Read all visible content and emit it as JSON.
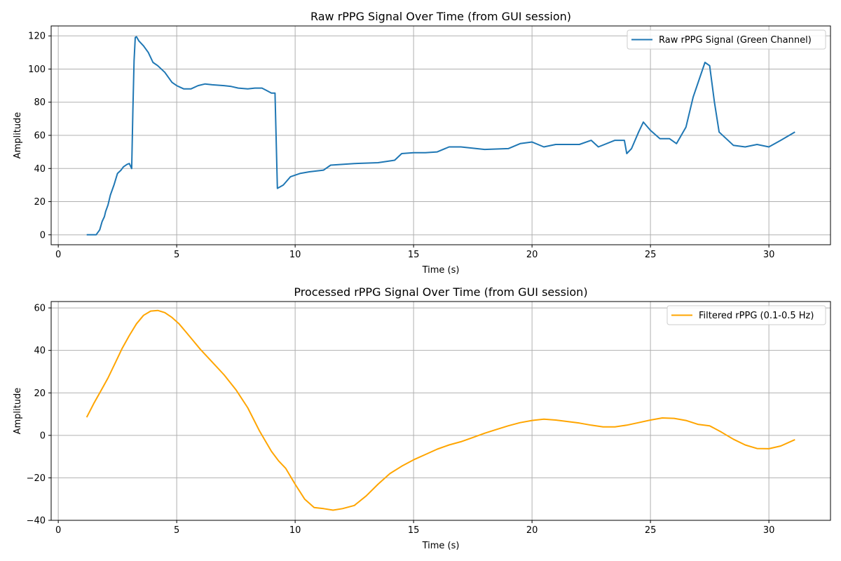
{
  "chart_data": [
    {
      "type": "line",
      "title": "Raw rPPG Signal Over Time (from GUI session)",
      "xlabel": "Time (s)",
      "ylabel": "Amplitude",
      "xlim": [
        -0.3,
        32.6
      ],
      "ylim": [
        -6,
        126
      ],
      "xticks": [
        0,
        5,
        10,
        15,
        20,
        25,
        30
      ],
      "yticks": [
        0,
        20,
        40,
        60,
        80,
        100,
        120
      ],
      "grid": true,
      "legend_position": "top-right",
      "series": [
        {
          "name": "Raw rPPG Signal (Green Channel)",
          "color": "#1f77b4",
          "x": [
            1.2,
            1.6,
            1.75,
            1.85,
            1.95,
            2.0,
            2.1,
            2.2,
            2.35,
            2.5,
            2.65,
            2.75,
            2.9,
            3.0,
            3.1,
            3.15,
            3.2,
            3.25,
            3.3,
            3.4,
            3.6,
            3.8,
            4.0,
            4.2,
            4.5,
            4.8,
            5.0,
            5.3,
            5.6,
            5.9,
            6.2,
            6.5,
            7.0,
            7.3,
            7.6,
            8.0,
            8.3,
            8.6,
            9.0,
            9.15,
            9.25,
            9.5,
            9.8,
            10.2,
            10.6,
            11.2,
            11.5,
            12.5,
            13.5,
            14.2,
            14.5,
            15.0,
            15.5,
            16.0,
            16.5,
            17.0,
            18.0,
            19.0,
            19.5,
            20.0,
            20.5,
            21.0,
            22.0,
            22.5,
            22.8,
            23.5,
            23.9,
            24.0,
            24.2,
            24.5,
            24.7,
            25.0,
            25.4,
            25.8,
            26.1,
            26.5,
            26.8,
            27.3,
            27.5,
            27.7,
            27.9,
            28.5,
            29.0,
            29.5,
            30.0,
            30.5,
            31.1
          ],
          "y": [
            0,
            0,
            3,
            8,
            11,
            14,
            18,
            24,
            30,
            37,
            39,
            41,
            42.5,
            43,
            40,
            75,
            105,
            119,
            119.5,
            117,
            114,
            110,
            104,
            102,
            98,
            92,
            90,
            88,
            88,
            90,
            91,
            90.5,
            90,
            89.5,
            88.5,
            88,
            88.5,
            88.5,
            85.5,
            85.5,
            28,
            30,
            35,
            37,
            38,
            39,
            42,
            43,
            43.5,
            45,
            49,
            49.5,
            49.5,
            50,
            53,
            53,
            51.5,
            52,
            55,
            56,
            53,
            54.5,
            54.5,
            57,
            53,
            57,
            57,
            49,
            52,
            62,
            68,
            63,
            58,
            58,
            55,
            65,
            83,
            104,
            102,
            80,
            62,
            54,
            53,
            54.5,
            53,
            57,
            62
          ]
        }
      ]
    },
    {
      "type": "line",
      "title": "Processed rPPG Signal Over Time (from GUI session)",
      "xlabel": "Time (s)",
      "ylabel": "Amplitude",
      "xlim": [
        -0.3,
        32.6
      ],
      "ylim": [
        -40,
        63
      ],
      "xticks": [
        0,
        5,
        10,
        15,
        20,
        25,
        30
      ],
      "yticks": [
        -40,
        -20,
        0,
        20,
        40,
        60
      ],
      "grid": true,
      "legend_position": "top-right",
      "series": [
        {
          "name": "Filtered rPPG (0.1-0.5 Hz)",
          "color": "#ffa500",
          "x": [
            1.2,
            1.5,
            1.8,
            2.1,
            2.4,
            2.7,
            3.0,
            3.3,
            3.6,
            3.9,
            4.2,
            4.5,
            4.8,
            5.1,
            5.4,
            5.7,
            6.0,
            6.5,
            7.0,
            7.5,
            8.0,
            8.5,
            9.0,
            9.3,
            9.6,
            10.0,
            10.4,
            10.8,
            11.2,
            11.6,
            12.0,
            12.5,
            13.0,
            13.5,
            14.0,
            14.5,
            15.0,
            15.5,
            16.0,
            16.5,
            17.0,
            17.5,
            18.0,
            18.5,
            19.0,
            19.5,
            20.0,
            20.5,
            21.0,
            21.5,
            22.0,
            22.5,
            23.0,
            23.5,
            24.0,
            24.5,
            25.0,
            25.5,
            26.0,
            26.5,
            27.0,
            27.5,
            28.0,
            28.5,
            29.0,
            29.5,
            30.0,
            30.5,
            31.1
          ],
          "y": [
            8.5,
            15,
            21,
            27,
            34,
            41,
            47,
            52.5,
            56.5,
            58.5,
            58.8,
            57.8,
            55.5,
            52.5,
            48.5,
            44.5,
            40.5,
            34.5,
            28.5,
            21.5,
            13,
            2,
            -7.5,
            -12,
            -15.5,
            -23,
            -30,
            -34,
            -34.5,
            -35.2,
            -34.5,
            -33,
            -28.5,
            -23,
            -18,
            -14.5,
            -11.5,
            -9,
            -6.5,
            -4.5,
            -3,
            -1,
            1,
            2.8,
            4.5,
            6,
            7,
            7.6,
            7.2,
            6.5,
            5.8,
            4.8,
            4,
            4,
            4.8,
            6,
            7.2,
            8.2,
            8,
            7,
            5.2,
            4.5,
            1.5,
            -1.8,
            -4.5,
            -6.2,
            -6.3,
            -5,
            -2
          ]
        }
      ]
    }
  ]
}
